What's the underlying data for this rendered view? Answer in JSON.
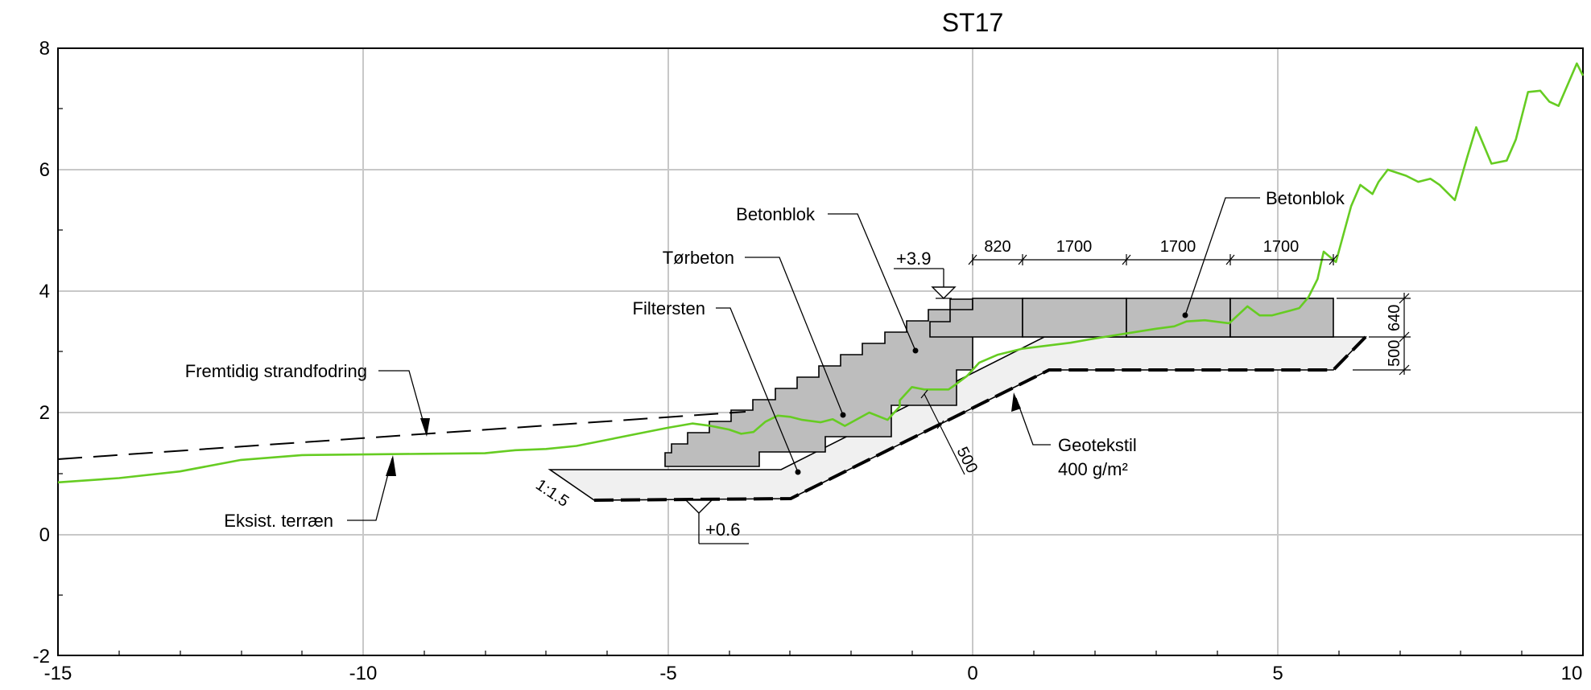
{
  "title": "ST17",
  "colors": {
    "terrain": "#66cc22",
    "grid": "#c8c8c8",
    "blocks": "#bdbdbd",
    "filter": "#f0f0f0"
  },
  "axes": {
    "x_ticks": [
      "-15",
      "-10",
      "-5",
      "0",
      "5",
      "10"
    ],
    "y_ticks": [
      "8",
      "6",
      "4",
      "2",
      "0",
      "-2"
    ],
    "xlim": [
      -15,
      10
    ],
    "ylim": [
      -2,
      8
    ]
  },
  "labels": {
    "betonblok_left": "Betonblok",
    "torbeton": "Tørbeton",
    "filtersten": "Filtersten",
    "fremtidig": "Fremtidig strandfodring",
    "eksist": "Eksist. terræn",
    "betonblok_right": "Betonblok",
    "geotekstil_1": "Geotekstil",
    "geotekstil_2": "400 g/m²",
    "level_top": "+3.9",
    "level_bottom": "+0.6",
    "slope": "1:1.5",
    "thickness": "500"
  },
  "dimensions": {
    "horizontal": [
      "820",
      "1700",
      "1700",
      "1700"
    ],
    "vertical": [
      "640",
      "500"
    ]
  },
  "terrain_profile": [
    [
      -15.0,
      0.85
    ],
    [
      -14.0,
      0.92
    ],
    [
      -13.0,
      1.03
    ],
    [
      -12.0,
      1.22
    ],
    [
      -11.0,
      1.3
    ],
    [
      -10.0,
      1.31
    ],
    [
      -9.0,
      1.32
    ],
    [
      -8.0,
      1.33
    ],
    [
      -7.5,
      1.38
    ],
    [
      -7.0,
      1.4
    ],
    [
      -6.5,
      1.45
    ],
    [
      -6.0,
      1.55
    ],
    [
      -5.5,
      1.65
    ],
    [
      -5.0,
      1.75
    ],
    [
      -4.6,
      1.82
    ],
    [
      -4.3,
      1.78
    ],
    [
      -4.0,
      1.72
    ],
    [
      -3.8,
      1.65
    ],
    [
      -3.6,
      1.68
    ],
    [
      -3.4,
      1.85
    ],
    [
      -3.2,
      1.95
    ],
    [
      -3.0,
      1.93
    ],
    [
      -2.8,
      1.88
    ],
    [
      -2.5,
      1.84
    ],
    [
      -2.3,
      1.89
    ],
    [
      -2.1,
      1.78
    ],
    [
      -1.7,
      2.0
    ],
    [
      -1.4,
      1.88
    ],
    [
      -1.2,
      2.1
    ],
    [
      -1.2,
      2.2
    ],
    [
      -1.0,
      2.42
    ],
    [
      -0.8,
      2.38
    ],
    [
      -0.4,
      2.38
    ],
    [
      -0.3,
      2.45
    ],
    [
      -0.1,
      2.6
    ],
    [
      0.1,
      2.82
    ],
    [
      0.4,
      2.95
    ],
    [
      0.8,
      3.05
    ],
    [
      1.2,
      3.1
    ],
    [
      1.6,
      3.15
    ],
    [
      2.0,
      3.22
    ],
    [
      2.5,
      3.3
    ],
    [
      3.0,
      3.38
    ],
    [
      3.3,
      3.42
    ],
    [
      3.5,
      3.5
    ],
    [
      3.8,
      3.52
    ],
    [
      4.2,
      3.47
    ],
    [
      4.5,
      3.75
    ],
    [
      4.7,
      3.6
    ],
    [
      4.9,
      3.6
    ],
    [
      5.2,
      3.68
    ],
    [
      5.35,
      3.72
    ],
    [
      5.5,
      3.9
    ],
    [
      5.65,
      4.2
    ],
    [
      5.75,
      4.65
    ],
    [
      5.95,
      4.48
    ],
    [
      6.2,
      5.4
    ],
    [
      6.35,
      5.75
    ],
    [
      6.55,
      5.6
    ],
    [
      6.65,
      5.8
    ],
    [
      6.8,
      6.0
    ],
    [
      7.1,
      5.9
    ],
    [
      7.3,
      5.8
    ],
    [
      7.5,
      5.85
    ],
    [
      7.65,
      5.75
    ],
    [
      7.9,
      5.5
    ],
    [
      8.1,
      6.2
    ],
    [
      8.25,
      6.7
    ],
    [
      8.5,
      6.1
    ],
    [
      8.75,
      6.15
    ],
    [
      8.9,
      6.5
    ],
    [
      9.1,
      7.28
    ],
    [
      9.3,
      7.3
    ],
    [
      9.45,
      7.12
    ],
    [
      9.6,
      7.05
    ],
    [
      9.9,
      7.75
    ],
    [
      10.0,
      7.55
    ]
  ]
}
